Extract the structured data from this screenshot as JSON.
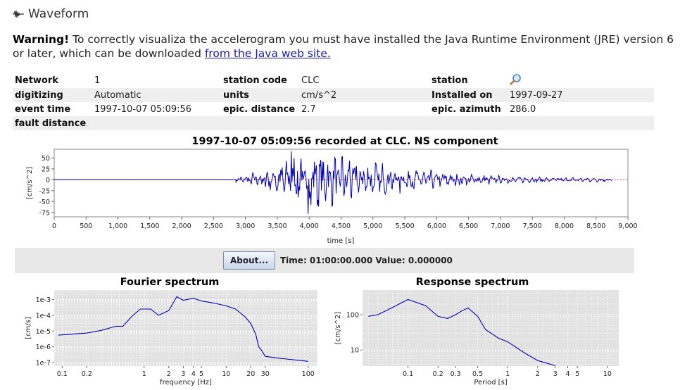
{
  "title": "Waveform",
  "warning": {
    "bold": "Warning!",
    "text": " To correctly visualiza the accelerogram you must have installed the Java Runtime Environment (JRE) version 6 or later, which can be downloaded ",
    "link": "from the Java web site."
  },
  "info": {
    "network_label": "Network",
    "network": "1",
    "station_code_label": "station code",
    "station_code": "CLC",
    "station_label": "station",
    "digitizing_label": "digitizing",
    "digitizing": "Automatic",
    "units_label": "units",
    "units": "cm/s^2",
    "installed_label": "Installed on",
    "installed": "1997-09-27",
    "event_time_label": "event time",
    "event_time": "1997-10-07 05:09:56",
    "epic_distance_label": "epic. distance",
    "epic_distance": "2.7",
    "epic_azimuth_label": "epic. azimuth",
    "epic_azimuth": "286.0",
    "fault_distance_label": "fault distance"
  },
  "applet": {
    "about_label": "About...",
    "status": "Time: 01:00:00.000  Value: 0.000000"
  },
  "colors": {
    "trace": "#0000b4",
    "plot_bg": "#e2e2e2",
    "zero_line": "#ff4444"
  },
  "chart_data": [
    {
      "type": "line",
      "title": "1997-10-07 05:09:56 recorded at CLC. NS component",
      "xlabel": "time [s]",
      "ylabel": "[cm/s^2]",
      "xlim": [
        0,
        9000
      ],
      "ylim": [
        -85,
        70
      ],
      "xticks": [
        "0",
        "500",
        "1,000",
        "1,500",
        "2,000",
        "2,500",
        "3,000",
        "3,500",
        "4,000",
        "4,500",
        "5,000",
        "5,500",
        "6,000",
        "6,500",
        "7,000",
        "7,500",
        "8,000",
        "8,500",
        "9,000"
      ],
      "yticks": [
        "50",
        "25",
        "0",
        "-25",
        "-50",
        "-75"
      ],
      "signal_span": [
        0,
        8750
      ],
      "strong_motion_start": 2850,
      "peak_positive": 65,
      "peak_negative": -78,
      "grid": false
    },
    {
      "type": "line",
      "title": "Fourier spectrum",
      "xlabel": "frequency [Hz]",
      "ylabel": "[cm/s]",
      "xscale": "log",
      "yscale": "log",
      "xlim": [
        0.08,
        130
      ],
      "ylim": [
        6e-08,
        0.004
      ],
      "xticks": [
        "0.1",
        "0.2",
        "1",
        "2",
        "3",
        "4",
        "5",
        "10",
        "20",
        "30",
        "100"
      ],
      "yticks": [
        "1e-3",
        "1e-4",
        "1e-5",
        "1e-6",
        "1e-7"
      ],
      "x": [
        0.09,
        0.2,
        0.3,
        0.45,
        0.55,
        0.7,
        0.9,
        1.2,
        1.5,
        2,
        2.5,
        3,
        4,
        5,
        7,
        10,
        13,
        17,
        20,
        23,
        25,
        27,
        30,
        40,
        60,
        100
      ],
      "y": [
        5.5e-06,
        7.5e-06,
        1.1e-05,
        2e-05,
        2e-05,
        8e-05,
        0.00025,
        0.00025,
        0.0001,
        0.0002,
        0.0015,
        0.0009,
        0.0012,
        0.0008,
        0.0006,
        0.0004,
        0.00025,
        8e-05,
        3e-05,
        6e-06,
        1e-06,
        6e-07,
        2.5e-07,
        2e-07,
        1.6e-07,
        1.2e-07
      ],
      "grid": true
    },
    {
      "type": "line",
      "title": "Response spectrum",
      "xlabel": "Period [s]",
      "ylabel": "[cm/s^2]",
      "xscale": "log",
      "yscale": "log",
      "xlim": [
        0.035,
        13
      ],
      "ylim": [
        3.5,
        500
      ],
      "xticks": [
        "0.1",
        "0.2",
        "0.3",
        "0.5",
        "1",
        "2",
        "3",
        "4",
        "5",
        "10"
      ],
      "yticks": [
        "100",
        "10"
      ],
      "x": [
        0.04,
        0.05,
        0.07,
        0.1,
        0.15,
        0.2,
        0.25,
        0.3,
        0.35,
        0.4,
        0.5,
        0.6,
        0.8,
        1,
        1.5,
        2,
        3
      ],
      "y": [
        90,
        100,
        160,
        270,
        180,
        90,
        78,
        100,
        130,
        155,
        90,
        38,
        22,
        17,
        8,
        5,
        3.6
      ],
      "grid": true
    }
  ]
}
